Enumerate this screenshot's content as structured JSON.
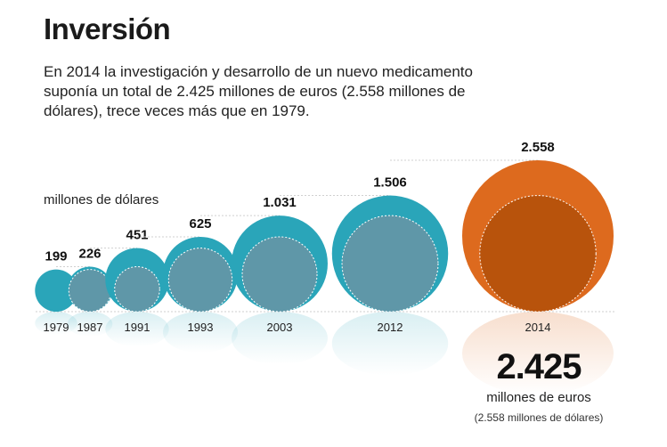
{
  "header": {
    "title": "Inversión",
    "subtitle": "En 2014 la investigación y desarrollo de un nuevo medicamento suponía un total de 2.425 millones de euros (2.558 millones de dólares), trece veces más que en 1979."
  },
  "chart_data": {
    "type": "bubble",
    "unit_label": "millones de dólares",
    "categories": [
      "1979",
      "1987",
      "1991",
      "1993",
      "2003",
      "2012",
      "2014"
    ],
    "values": [
      199,
      226,
      451,
      625,
      1031,
      1506,
      2558
    ],
    "value_labels": [
      "199",
      "226",
      "451",
      "625",
      "1.031",
      "1.506",
      "2.558"
    ],
    "highlight": {
      "category": "2014",
      "value_label": "2.425",
      "unit": "millones de euros",
      "note": "(2.558 millones de dólares)"
    },
    "colors": {
      "bubble": "#2aa5b9",
      "highlight": "#dd6a1e",
      "inner": "#5f97a8",
      "inner_highlight": "#b8530c"
    }
  }
}
